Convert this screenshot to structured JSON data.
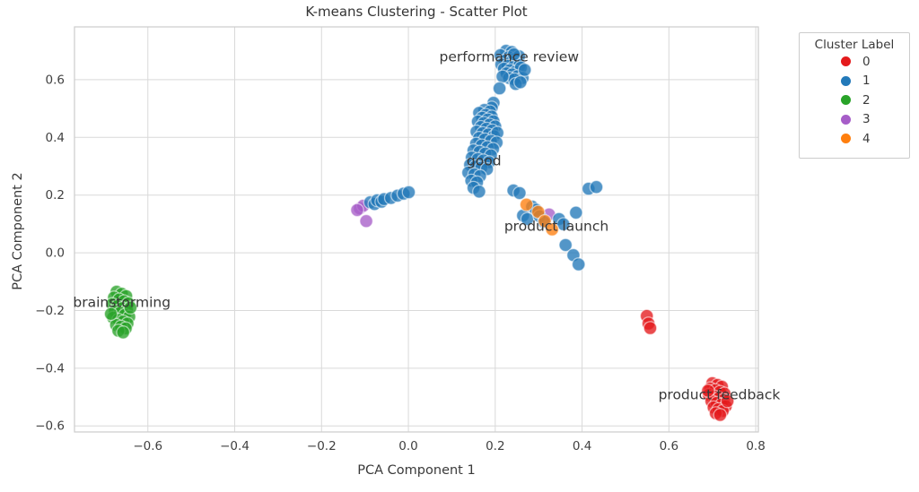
{
  "chart_data": {
    "type": "scatter",
    "title": "K-means Clustering - Scatter Plot",
    "xlabel": "PCA Component 1",
    "ylabel": "PCA Component 2",
    "xlim": [
      -0.769,
      0.806
    ],
    "ylim": [
      -0.621,
      0.783
    ],
    "grid": true,
    "xticks": {
      "values": [
        -0.6,
        -0.4,
        -0.2,
        0.0,
        0.2,
        0.4,
        0.6,
        0.8
      ],
      "labels": [
        "−0.6",
        "−0.4",
        "−0.2",
        "0.0",
        "0.2",
        "0.4",
        "0.6",
        "0.8"
      ]
    },
    "yticks": {
      "values": [
        0.6,
        0.4,
        0.2,
        0.0,
        -0.2,
        -0.4,
        -0.6
      ],
      "labels": [
        "0.6",
        "0.4",
        "0.2",
        "0.0",
        "−0.2",
        "−0.4",
        "−0.6"
      ]
    },
    "legend": {
      "title": "Cluster Label",
      "position": "outside upper right",
      "entries": [
        {
          "label": "0",
          "color": "#e41a1c"
        },
        {
          "label": "1",
          "color": "#2279b9"
        },
        {
          "label": "2",
          "color": "#29a329"
        },
        {
          "label": "3",
          "color": "#a65dc8"
        },
        {
          "label": "4",
          "color": "#ff7f0e"
        }
      ]
    },
    "series": [
      {
        "name": "3",
        "color": "#a65dc8",
        "points": [
          [
            -0.112,
            0.154
          ],
          [
            -0.104,
            0.163
          ],
          [
            -0.118,
            0.148
          ],
          [
            -0.097,
            0.11
          ],
          [
            0.324,
            0.133
          ]
        ]
      },
      {
        "name": "1",
        "color": "#2279b9",
        "points": [
          [
            -0.088,
            0.175
          ],
          [
            -0.078,
            0.169
          ],
          [
            -0.072,
            0.182
          ],
          [
            -0.062,
            0.177
          ],
          [
            -0.056,
            0.186
          ],
          [
            -0.04,
            0.19
          ],
          [
            -0.025,
            0.198
          ],
          [
            -0.011,
            0.205
          ],
          [
            0.001,
            0.21
          ],
          [
            0.225,
            0.7
          ],
          [
            0.238,
            0.696
          ],
          [
            0.212,
            0.685
          ],
          [
            0.231,
            0.678
          ],
          [
            0.247,
            0.674
          ],
          [
            0.255,
            0.681
          ],
          [
            0.222,
            0.666
          ],
          [
            0.236,
            0.661
          ],
          [
            0.25,
            0.656
          ],
          [
            0.214,
            0.653
          ],
          [
            0.228,
            0.648
          ],
          [
            0.242,
            0.644
          ],
          [
            0.256,
            0.65
          ],
          [
            0.22,
            0.638
          ],
          [
            0.234,
            0.633
          ],
          [
            0.247,
            0.628
          ],
          [
            0.259,
            0.642
          ],
          [
            0.226,
            0.622
          ],
          [
            0.239,
            0.618
          ],
          [
            0.251,
            0.612
          ],
          [
            0.263,
            0.606
          ],
          [
            0.232,
            0.606
          ],
          [
            0.244,
            0.601
          ],
          [
            0.217,
            0.611
          ],
          [
            0.268,
            0.634
          ],
          [
            0.243,
            0.688
          ],
          [
            0.247,
            0.585
          ],
          [
            0.258,
            0.591
          ],
          [
            0.21,
            0.57
          ],
          [
            0.196,
            0.52
          ],
          [
            0.192,
            0.503
          ],
          [
            0.175,
            0.495
          ],
          [
            0.188,
            0.49
          ],
          [
            0.163,
            0.485
          ],
          [
            0.178,
            0.478
          ],
          [
            0.192,
            0.472
          ],
          [
            0.17,
            0.468
          ],
          [
            0.183,
            0.462
          ],
          [
            0.196,
            0.456
          ],
          [
            0.16,
            0.455
          ],
          [
            0.174,
            0.45
          ],
          [
            0.187,
            0.444
          ],
          [
            0.2,
            0.438
          ],
          [
            0.167,
            0.436
          ],
          [
            0.18,
            0.43
          ],
          [
            0.193,
            0.424
          ],
          [
            0.157,
            0.42
          ],
          [
            0.171,
            0.415
          ],
          [
            0.184,
            0.41
          ],
          [
            0.197,
            0.404
          ],
          [
            0.205,
            0.416
          ],
          [
            0.163,
            0.398
          ],
          [
            0.176,
            0.393
          ],
          [
            0.19,
            0.388
          ],
          [
            0.203,
            0.382
          ],
          [
            0.156,
            0.378
          ],
          [
            0.169,
            0.372
          ],
          [
            0.182,
            0.366
          ],
          [
            0.195,
            0.36
          ],
          [
            0.15,
            0.355
          ],
          [
            0.164,
            0.35
          ],
          [
            0.177,
            0.344
          ],
          [
            0.19,
            0.338
          ],
          [
            0.146,
            0.33
          ],
          [
            0.16,
            0.325
          ],
          [
            0.173,
            0.32
          ],
          [
            0.186,
            0.314
          ],
          [
            0.142,
            0.305
          ],
          [
            0.155,
            0.3
          ],
          [
            0.168,
            0.295
          ],
          [
            0.181,
            0.29
          ],
          [
            0.138,
            0.278
          ],
          [
            0.152,
            0.272
          ],
          [
            0.165,
            0.266
          ],
          [
            0.145,
            0.25
          ],
          [
            0.158,
            0.244
          ],
          [
            0.15,
            0.225
          ],
          [
            0.163,
            0.212
          ],
          [
            0.242,
            0.216
          ],
          [
            0.256,
            0.207
          ],
          [
            0.285,
            0.16
          ],
          [
            0.294,
            0.149
          ],
          [
            0.264,
            0.129
          ],
          [
            0.274,
            0.117
          ],
          [
            0.302,
            0.127
          ],
          [
            0.312,
            0.107
          ],
          [
            0.347,
            0.117
          ],
          [
            0.357,
            0.099
          ],
          [
            0.386,
            0.139
          ],
          [
            0.415,
            0.222
          ],
          [
            0.433,
            0.228
          ],
          [
            0.362,
            0.027
          ],
          [
            0.38,
            -0.008
          ],
          [
            0.392,
            -0.04
          ]
        ]
      },
      {
        "name": "4",
        "color": "#ff7f0e",
        "points": [
          [
            0.272,
            0.167
          ],
          [
            0.299,
            0.142
          ],
          [
            0.314,
            0.11
          ],
          [
            0.331,
            0.081
          ]
        ]
      },
      {
        "name": "2",
        "color": "#29a329",
        "points": [
          [
            -0.672,
            -0.135
          ],
          [
            -0.66,
            -0.142
          ],
          [
            -0.65,
            -0.15
          ],
          [
            -0.678,
            -0.155
          ],
          [
            -0.666,
            -0.162
          ],
          [
            -0.655,
            -0.168
          ],
          [
            -0.645,
            -0.175
          ],
          [
            -0.682,
            -0.178
          ],
          [
            -0.67,
            -0.185
          ],
          [
            -0.659,
            -0.192
          ],
          [
            -0.648,
            -0.198
          ],
          [
            -0.676,
            -0.202
          ],
          [
            -0.664,
            -0.208
          ],
          [
            -0.653,
            -0.215
          ],
          [
            -0.643,
            -0.222
          ],
          [
            -0.68,
            -0.225
          ],
          [
            -0.668,
            -0.232
          ],
          [
            -0.657,
            -0.238
          ],
          [
            -0.647,
            -0.245
          ],
          [
            -0.673,
            -0.25
          ],
          [
            -0.662,
            -0.256
          ],
          [
            -0.651,
            -0.262
          ],
          [
            -0.668,
            -0.27
          ],
          [
            -0.657,
            -0.276
          ],
          [
            -0.64,
            -0.19
          ],
          [
            -0.685,
            -0.212
          ]
        ]
      },
      {
        "name": "0",
        "color": "#e41a1c",
        "points": [
          [
            0.549,
            -0.219
          ],
          [
            0.553,
            -0.245
          ],
          [
            0.557,
            -0.261
          ],
          [
            0.7,
            -0.452
          ],
          [
            0.712,
            -0.458
          ],
          [
            0.722,
            -0.464
          ],
          [
            0.695,
            -0.47
          ],
          [
            0.707,
            -0.476
          ],
          [
            0.718,
            -0.482
          ],
          [
            0.728,
            -0.488
          ],
          [
            0.692,
            -0.492
          ],
          [
            0.704,
            -0.498
          ],
          [
            0.715,
            -0.504
          ],
          [
            0.726,
            -0.51
          ],
          [
            0.698,
            -0.514
          ],
          [
            0.71,
            -0.52
          ],
          [
            0.721,
            -0.526
          ],
          [
            0.731,
            -0.532
          ],
          [
            0.703,
            -0.536
          ],
          [
            0.714,
            -0.542
          ],
          [
            0.724,
            -0.548
          ],
          [
            0.708,
            -0.556
          ],
          [
            0.718,
            -0.562
          ],
          [
            0.735,
            -0.514
          ],
          [
            0.69,
            -0.478
          ]
        ]
      }
    ],
    "annotations": [
      {
        "text": "performance review",
        "x": 0.232,
        "y": 0.68
      },
      {
        "text": "good",
        "x": 0.174,
        "y": 0.32
      },
      {
        "text": "product launch",
        "x": 0.341,
        "y": 0.093
      },
      {
        "text": "brainstorming",
        "x": -0.66,
        "y": -0.171
      },
      {
        "text": "product feedback",
        "x": 0.716,
        "y": -0.491
      }
    ],
    "style": {
      "grid_color": "#d9d9d9",
      "spine_color": "#cccccc",
      "background": "#ffffff",
      "marker_opacity": 0.78
    }
  }
}
